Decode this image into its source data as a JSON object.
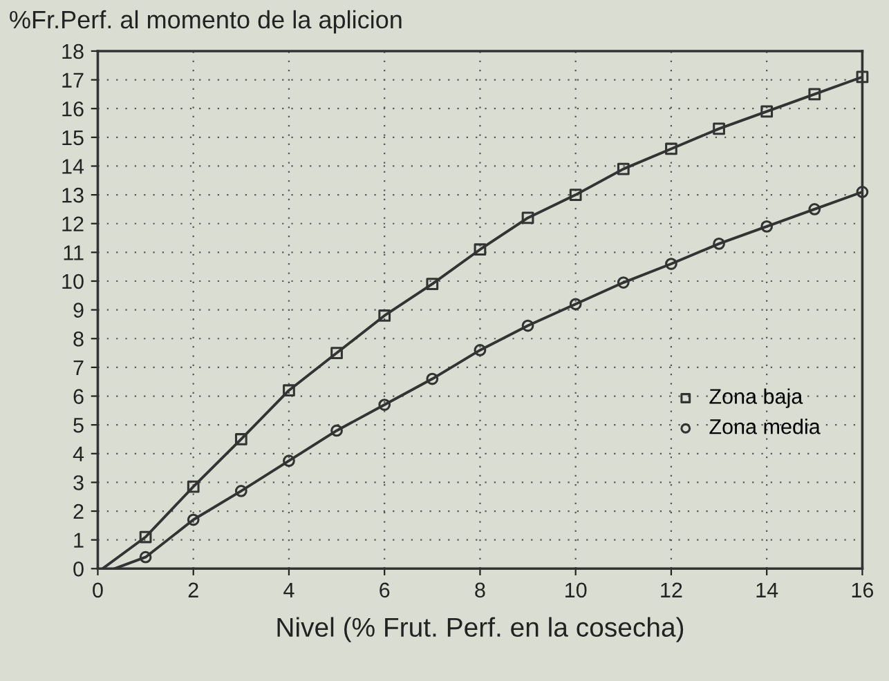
{
  "chart_data": {
    "type": "scatter",
    "ylabel": "%Fr.Perf. al momento de la aplicion",
    "xlabel": "Nivel (% Frut. Perf. en la cosecha)",
    "xlim": [
      0,
      16
    ],
    "ylim": [
      0,
      18
    ],
    "xticks": [
      0,
      2,
      4,
      6,
      8,
      10,
      12,
      14,
      16
    ],
    "yticks": [
      0,
      1,
      2,
      3,
      4,
      5,
      6,
      7,
      8,
      9,
      10,
      11,
      12,
      13,
      14,
      15,
      16,
      17,
      18
    ],
    "grid": true,
    "legend": "right",
    "series": [
      {
        "name": "Zona baja",
        "marker": "square",
        "color": "#333333",
        "x": [
          1,
          2,
          3,
          4,
          5,
          6,
          7,
          8,
          9,
          10,
          11,
          12,
          13,
          14,
          15,
          16
        ],
        "values": [
          1.1,
          2.85,
          4.5,
          6.2,
          7.5,
          8.8,
          9.9,
          11.1,
          12.2,
          13.0,
          13.9,
          14.6,
          15.3,
          15.9,
          16.5,
          17.1
        ]
      },
      {
        "name": "Zona media",
        "marker": "circle",
        "color": "#333333",
        "x": [
          1,
          2,
          3,
          4,
          5,
          6,
          7,
          8,
          9,
          10,
          11,
          12,
          13,
          14,
          15,
          16
        ],
        "values": [
          0.4,
          1.7,
          2.7,
          3.75,
          4.8,
          5.7,
          6.6,
          7.6,
          8.45,
          9.2,
          9.95,
          10.6,
          11.3,
          11.9,
          12.5,
          13.1
        ]
      },
      {
        "type": "line",
        "marker": "none",
        "color": "#333333",
        "x": [
          0.1,
          1,
          2,
          3,
          4,
          5,
          6,
          7,
          8,
          9,
          10,
          11,
          12,
          13,
          14,
          15,
          16
        ],
        "values": [
          0,
          1.1,
          2.85,
          4.5,
          6.2,
          7.5,
          8.8,
          9.9,
          11.1,
          12.2,
          13.0,
          13.9,
          14.6,
          15.3,
          15.9,
          16.5,
          17.1
        ]
      },
      {
        "type": "line",
        "marker": "none",
        "color": "#333333",
        "x": [
          0.35,
          1,
          2,
          3,
          4,
          5,
          6,
          7,
          8,
          9,
          10,
          11,
          12,
          13,
          14,
          15,
          16
        ],
        "values": [
          0,
          0.4,
          1.7,
          2.7,
          3.75,
          4.8,
          5.7,
          6.6,
          7.6,
          8.45,
          9.2,
          9.95,
          10.6,
          11.3,
          11.9,
          12.5,
          13.1
        ]
      }
    ]
  }
}
